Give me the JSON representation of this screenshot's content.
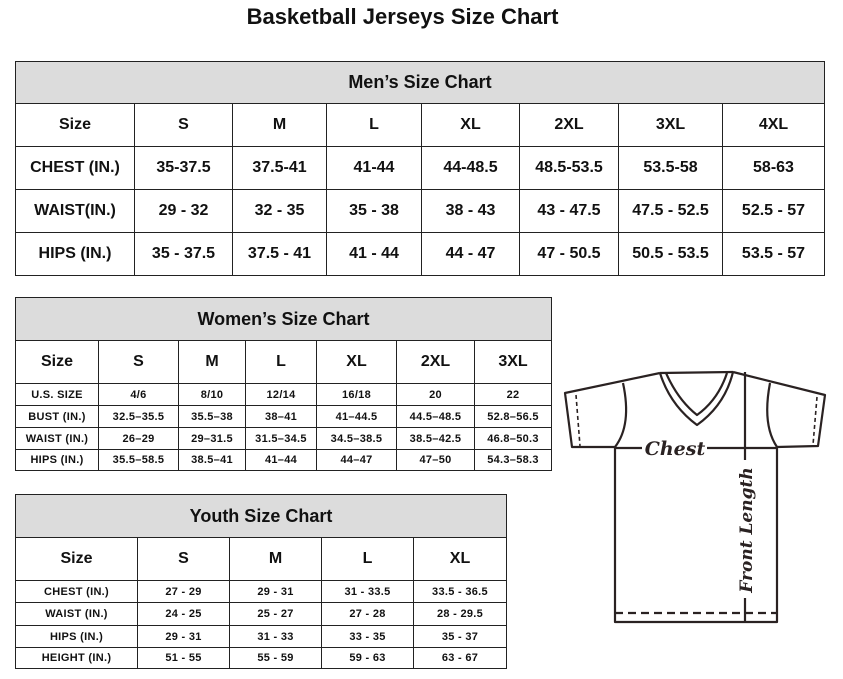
{
  "title": "Basketball Jerseys Size Chart",
  "men": {
    "title": "Men’s Size Chart",
    "headers": [
      "Size",
      "S",
      "M",
      "L",
      "XL",
      "2XL",
      "3XL",
      "4XL"
    ],
    "rows": [
      [
        "CHEST (IN.)",
        "35-37.5",
        "37.5-41",
        "41-44",
        "44-48.5",
        "48.5-53.5",
        "53.5-58",
        "58-63"
      ],
      [
        "WAIST(IN.)",
        "29 - 32",
        "32 - 35",
        "35 - 38",
        "38 - 43",
        "43 - 47.5",
        "47.5 - 52.5",
        "52.5 - 57"
      ],
      [
        "HIPS (IN.)",
        "35 - 37.5",
        "37.5 - 41",
        "41 - 44",
        "44 - 47",
        "47 - 50.5",
        "50.5 - 53.5",
        "53.5 - 57"
      ]
    ]
  },
  "women": {
    "title": "Women’s Size Chart",
    "headers": [
      "Size",
      "S",
      "M",
      "L",
      "XL",
      "2XL",
      "3XL"
    ],
    "rows": [
      [
        "U.S. SIZE",
        "4/6",
        "8/10",
        "12/14",
        "16/18",
        "20",
        "22"
      ],
      [
        "BUST (IN.)",
        "32.5–35.5",
        "35.5–38",
        "38–41",
        "41–44.5",
        "44.5–48.5",
        "52.8–56.5"
      ],
      [
        "WAIST (IN.)",
        "26–29",
        "29–31.5",
        "31.5–34.5",
        "34.5–38.5",
        "38.5–42.5",
        "46.8–50.3"
      ],
      [
        "HIPS (IN.)",
        "35.5–58.5",
        "38.5–41",
        "41–44",
        "44–47",
        "47–50",
        "54.3–58.3"
      ]
    ]
  },
  "youth": {
    "title": "Youth Size Chart",
    "headers": [
      "Size",
      "S",
      "M",
      "L",
      "XL"
    ],
    "rows": [
      [
        "CHEST (IN.)",
        "27 - 29",
        "29 - 31",
        "31 - 33.5",
        "33.5 - 36.5"
      ],
      [
        "WAIST (IN.)",
        "24 - 25",
        "25 - 27",
        "27 - 28",
        "28 - 29.5"
      ],
      [
        "HIPS (IN.)",
        "29 - 31",
        "31 - 33",
        "33 - 35",
        "35 - 37"
      ],
      [
        "HEIGHT (IN.)",
        "51 - 55",
        "55 - 59",
        "59 - 63",
        "63 - 67"
      ]
    ]
  },
  "diagram": {
    "chest_label": "Chest",
    "length_label": "Front Length"
  }
}
